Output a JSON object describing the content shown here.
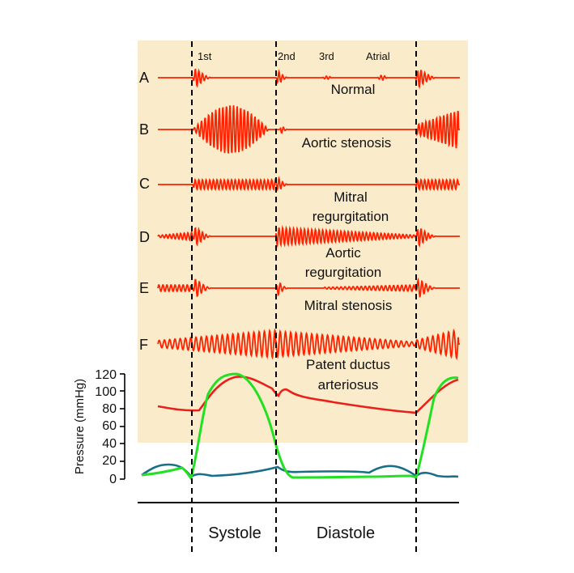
{
  "diagram": {
    "sound_labels": {
      "first": "1st",
      "second": "2nd",
      "third": "3rd",
      "atrial": "Atrial"
    },
    "rows": [
      {
        "letter": "A",
        "lines": [
          "Normal"
        ]
      },
      {
        "letter": "B",
        "lines": [
          "Aortic stenosis"
        ]
      },
      {
        "letter": "C",
        "lines": [
          "Mitral",
          "regurgitation"
        ]
      },
      {
        "letter": "D",
        "lines": [
          "Aortic",
          "regurgitation"
        ]
      },
      {
        "letter": "E",
        "lines": [
          "Mitral stenosis"
        ]
      },
      {
        "letter": "F",
        "lines": [
          "Patent ductus",
          "arteriosus"
        ]
      }
    ],
    "pressure_axis": {
      "title": "Pressure (mmHg)",
      "ticks": [
        "120",
        "100",
        "80",
        "60",
        "40",
        "20",
        "0"
      ]
    },
    "phases": {
      "systole": "Systole",
      "diastole": "Diastole"
    },
    "colors": {
      "panel_background": "#faeccb",
      "phonocardiogram": "#ff2200",
      "aortic_pressure": "#e8211a",
      "ventricular_pressure": "#22e022",
      "atrial_pressure": "#186f86",
      "divider": "#000000"
    }
  }
}
